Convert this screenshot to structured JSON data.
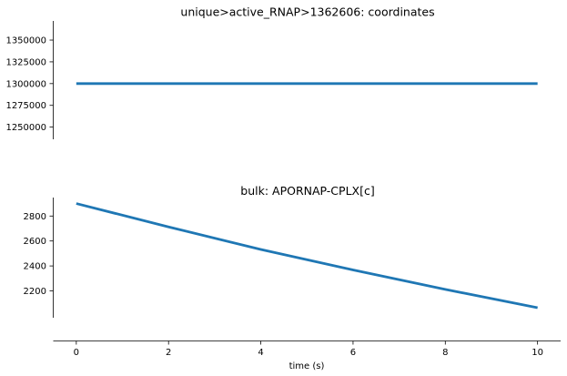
{
  "chart_data": [
    {
      "type": "line",
      "title": "unique>active_RNAP>1362606: coordinates",
      "xlabel": "",
      "ylabel": "",
      "x": [
        0,
        10
      ],
      "series": [
        {
          "values": [
            1300000,
            1300000
          ]
        }
      ],
      "ylim": [
        1236000,
        1372000
      ],
      "yticks": [
        1250000,
        1275000,
        1300000,
        1325000,
        1350000
      ],
      "ytick_labels": [
        "1250000",
        "1275000",
        "1300000",
        "1325000",
        "1350000"
      ],
      "grid": false,
      "color": "#1f77b4"
    },
    {
      "type": "line",
      "title": "bulk: APORNAP-CPLX[c]",
      "xlabel": "time (s)",
      "ylabel": "",
      "x": [
        0,
        2,
        4,
        6,
        8,
        10
      ],
      "series": [
        {
          "values": [
            2900,
            2713,
            2532,
            2368,
            2212,
            2065
          ]
        }
      ],
      "ylim": [
        1985,
        2948
      ],
      "yticks": [
        2200,
        2400,
        2600,
        2800
      ],
      "ytick_labels": [
        "2200",
        "2400",
        "2600",
        "2800"
      ],
      "xlim": [
        -0.5,
        10.5
      ],
      "xticks": [
        0,
        2,
        4,
        6,
        8,
        10
      ],
      "xtick_labels": [
        "0",
        "2",
        "4",
        "6",
        "8",
        "10"
      ],
      "grid": false,
      "color": "#1f77b4"
    }
  ]
}
